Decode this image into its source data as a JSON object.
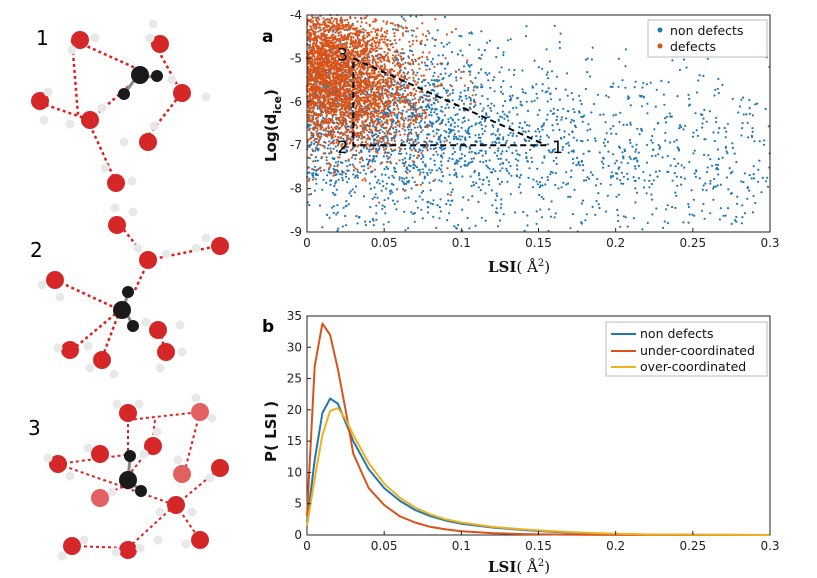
{
  "molecules": {
    "labels": [
      "1",
      "2",
      "3"
    ],
    "icon": "water-cluster-co2-molecule"
  },
  "colors": {
    "non_defects": "#1f77b4",
    "defects": "#d95319",
    "under_coordinated": "#d95319",
    "over_coordinated": "#edb120",
    "oxygen": "#d62728",
    "hydrogen": "#e8e8e8",
    "carbon": "#1a1a1a",
    "hbond": "#e02020"
  },
  "chart_data": [
    {
      "type": "scatter",
      "panel_label": "a",
      "xlabel_main": "LSI",
      "xlabel_unit": "( Å",
      "xlabel_sup": "2",
      "xlabel_close": ")",
      "ylabel_main": "Log(d",
      "ylabel_sub": "ice",
      "ylabel_close": ")",
      "xlim": [
        0,
        0.3
      ],
      "ylim": [
        -9,
        -4
      ],
      "xticks": [
        0,
        0.05,
        0.1,
        0.15,
        0.2,
        0.25,
        0.3
      ],
      "xtick_labels": [
        "0",
        "0.05",
        "0.1",
        "0.15",
        "0.2",
        "0.25",
        "0.3"
      ],
      "yticks": [
        -4,
        -5,
        -6,
        -7,
        -8,
        -9
      ],
      "ytick_labels": [
        "-4",
        "-5",
        "-6",
        "-7",
        "-8",
        "-9"
      ],
      "series": [
        {
          "name": "non defects",
          "color": "#1f77b4",
          "x_center": 0.05,
          "x_spread": 0.06,
          "y_center": -6.3,
          "y_spread": 1.1
        },
        {
          "name": "defects",
          "color": "#d95319",
          "x_center": 0.02,
          "x_spread": 0.03,
          "y_center": -5.3,
          "y_spread": 0.8
        }
      ],
      "legend": [
        "non defects",
        "defects"
      ],
      "legend_position": "top-right",
      "annotations": [
        {
          "label": "1",
          "x": 0.155,
          "y": -7.0
        },
        {
          "label": "2",
          "x": 0.03,
          "y": -7.0
        },
        {
          "label": "3",
          "x": 0.03,
          "y": -5.0
        }
      ]
    },
    {
      "type": "line",
      "panel_label": "b",
      "xlabel_main": "LSI",
      "xlabel_unit": "( Å",
      "xlabel_sup": "2",
      "xlabel_close": ")",
      "ylabel": "P( LSI )",
      "xlim": [
        0,
        0.3
      ],
      "ylim": [
        0,
        35
      ],
      "xticks": [
        0,
        0.05,
        0.1,
        0.15,
        0.2,
        0.25,
        0.3
      ],
      "xtick_labels": [
        "0",
        "0.05",
        "0.1",
        "0.15",
        "0.2",
        "0.25",
        "0.3"
      ],
      "yticks": [
        0,
        5,
        10,
        15,
        20,
        25,
        30,
        35
      ],
      "ytick_labels": [
        "0",
        "5",
        "10",
        "15",
        "20",
        "25",
        "30",
        "35"
      ],
      "legend_position": "top-right",
      "series": [
        {
          "name": "non defects",
          "color": "#1f77b4",
          "x": [
            0,
            0.005,
            0.01,
            0.015,
            0.02,
            0.025,
            0.03,
            0.04,
            0.05,
            0.06,
            0.07,
            0.08,
            0.09,
            0.1,
            0.12,
            0.14,
            0.16,
            0.18,
            0.2,
            0.22,
            0.25,
            0.3
          ],
          "values": [
            2,
            12,
            19.5,
            21.8,
            21,
            18,
            15,
            10.5,
            7.5,
            5.5,
            4,
            3,
            2.3,
            1.8,
            1.2,
            0.8,
            0.5,
            0.3,
            0.15,
            0.08,
            0.03,
            0
          ]
        },
        {
          "name": "under-coordinated",
          "color": "#d95319",
          "x": [
            0,
            0.005,
            0.01,
            0.015,
            0.02,
            0.025,
            0.03,
            0.04,
            0.05,
            0.06,
            0.07,
            0.08,
            0.09,
            0.1,
            0.12,
            0.14,
            0.16,
            0.18,
            0.2,
            0.22,
            0.25,
            0.3
          ],
          "values": [
            3,
            27,
            33.8,
            32,
            26.5,
            20,
            13,
            7.5,
            4.8,
            3,
            2,
            1.3,
            0.9,
            0.6,
            0.3,
            0.15,
            0.08,
            0.04,
            0.02,
            0.01,
            0,
            0
          ]
        },
        {
          "name": "over-coordinated",
          "color": "#edb120",
          "x": [
            0,
            0.005,
            0.01,
            0.015,
            0.02,
            0.025,
            0.03,
            0.04,
            0.05,
            0.06,
            0.07,
            0.08,
            0.09,
            0.1,
            0.12,
            0.14,
            0.16,
            0.18,
            0.2,
            0.22,
            0.25,
            0.3
          ],
          "values": [
            1.5,
            9,
            16,
            19.8,
            20.3,
            18.5,
            16,
            11.5,
            8.2,
            6,
            4.4,
            3.3,
            2.5,
            2,
            1.3,
            0.9,
            0.6,
            0.35,
            0.2,
            0.1,
            0.04,
            0
          ]
        }
      ]
    }
  ]
}
